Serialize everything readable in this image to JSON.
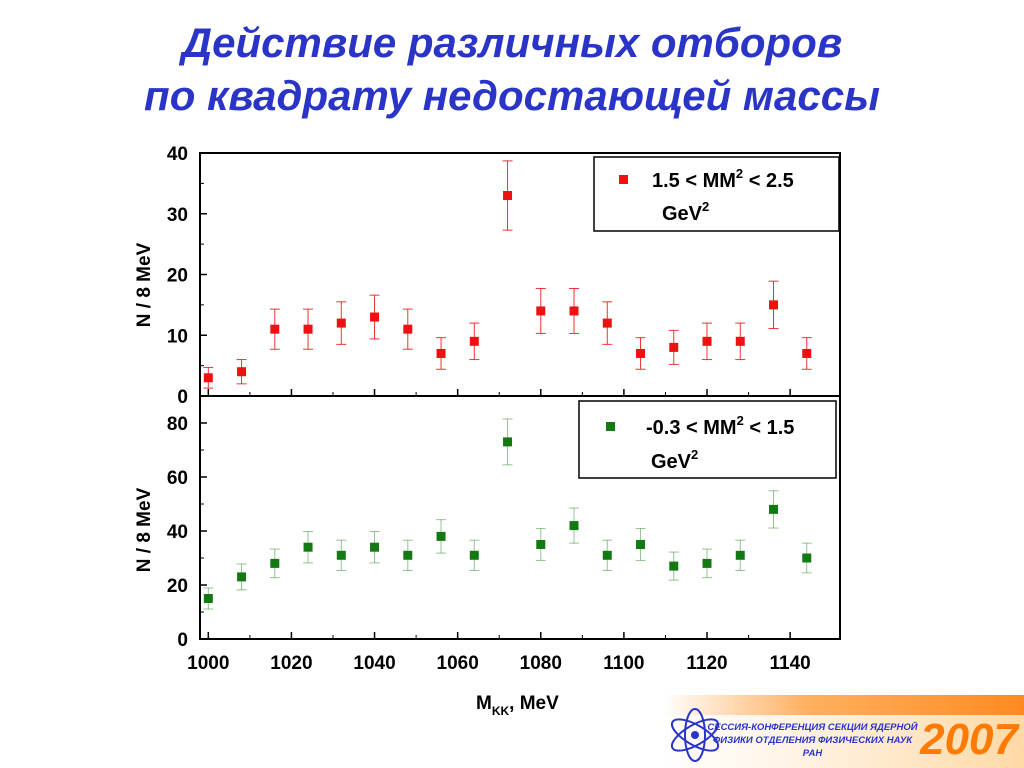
{
  "title": {
    "line1": "Действие различных отборов",
    "line2": "по квадрату недостающей массы"
  },
  "chart_data": {
    "type": "scatter",
    "xlabel_main": "M",
    "xlabel_sub": "KK",
    "xlabel_rest": ", MeV",
    "xlim": [
      998,
      1152
    ],
    "x_ticks": [
      "1000",
      "1020",
      "1040",
      "1060",
      "1080",
      "1100",
      "1120",
      "1140"
    ],
    "x_tick_values": [
      1000,
      1020,
      1040,
      1060,
      1080,
      1100,
      1120,
      1140
    ],
    "panels": [
      {
        "ylabel": "N / 8 MeV",
        "ylim": [
          0,
          40
        ],
        "y_ticks": [
          "0",
          "10",
          "20",
          "30",
          "40"
        ],
        "y_tick_values": [
          0,
          10,
          20,
          30,
          40
        ],
        "color": "#ee1111",
        "legend": {
          "label": "1.5 < MM",
          "sup": "2",
          "label_end": " < 2.5",
          "unit": "GeV",
          "unit_sup": "2"
        },
        "series": {
          "x": [
            1000,
            1008,
            1016,
            1024,
            1032,
            1040,
            1048,
            1056,
            1064,
            1072,
            1080,
            1088,
            1096,
            1104,
            1112,
            1120,
            1128,
            1136,
            1144
          ],
          "y": [
            3,
            4,
            11,
            11,
            12,
            13,
            11,
            7,
            9,
            33,
            14,
            14,
            12,
            7,
            8,
            9,
            9,
            15,
            7
          ],
          "err": [
            1.7,
            2,
            3.3,
            3.3,
            3.5,
            3.6,
            3.3,
            2.6,
            3,
            5.7,
            3.7,
            3.7,
            3.5,
            2.6,
            2.8,
            3,
            3,
            3.9,
            2.6
          ]
        }
      },
      {
        "ylabel": "N / 8 MeV",
        "ylim": [
          0,
          90
        ],
        "y_ticks": [
          "0",
          "20",
          "40",
          "60",
          "80"
        ],
        "y_tick_values": [
          0,
          20,
          40,
          60,
          80
        ],
        "color": "#137a13",
        "legend": {
          "label": "-0.3 < MM",
          "sup": "2",
          "label_end": " < 1.5",
          "unit": "GeV",
          "unit_sup": "2"
        },
        "series": {
          "x": [
            1000,
            1008,
            1016,
            1024,
            1032,
            1040,
            1048,
            1056,
            1064,
            1072,
            1080,
            1088,
            1096,
            1104,
            1112,
            1120,
            1128,
            1136,
            1144
          ],
          "y": [
            15,
            23,
            28,
            34,
            31,
            34,
            31,
            38,
            31,
            73,
            35,
            42,
            31,
            35,
            27,
            28,
            31,
            48,
            30
          ],
          "err": [
            3.9,
            4.8,
            5.3,
            5.8,
            5.6,
            5.8,
            5.6,
            6.2,
            5.6,
            8.5,
            5.9,
            6.5,
            5.6,
            5.9,
            5.2,
            5.3,
            5.6,
            6.9,
            5.5
          ]
        }
      }
    ]
  },
  "banner": {
    "line1": "СЕССИЯ-КОНФЕРЕНЦИЯ СЕКЦИИ ЯДЕРНОЙ",
    "line2": "ФИЗИКИ ОТДЕЛЕНИЯ ФИЗИЧЕСКИХ НАУК",
    "line3": "РАН",
    "year": "2007",
    "logo_icon": "atom-icon"
  }
}
